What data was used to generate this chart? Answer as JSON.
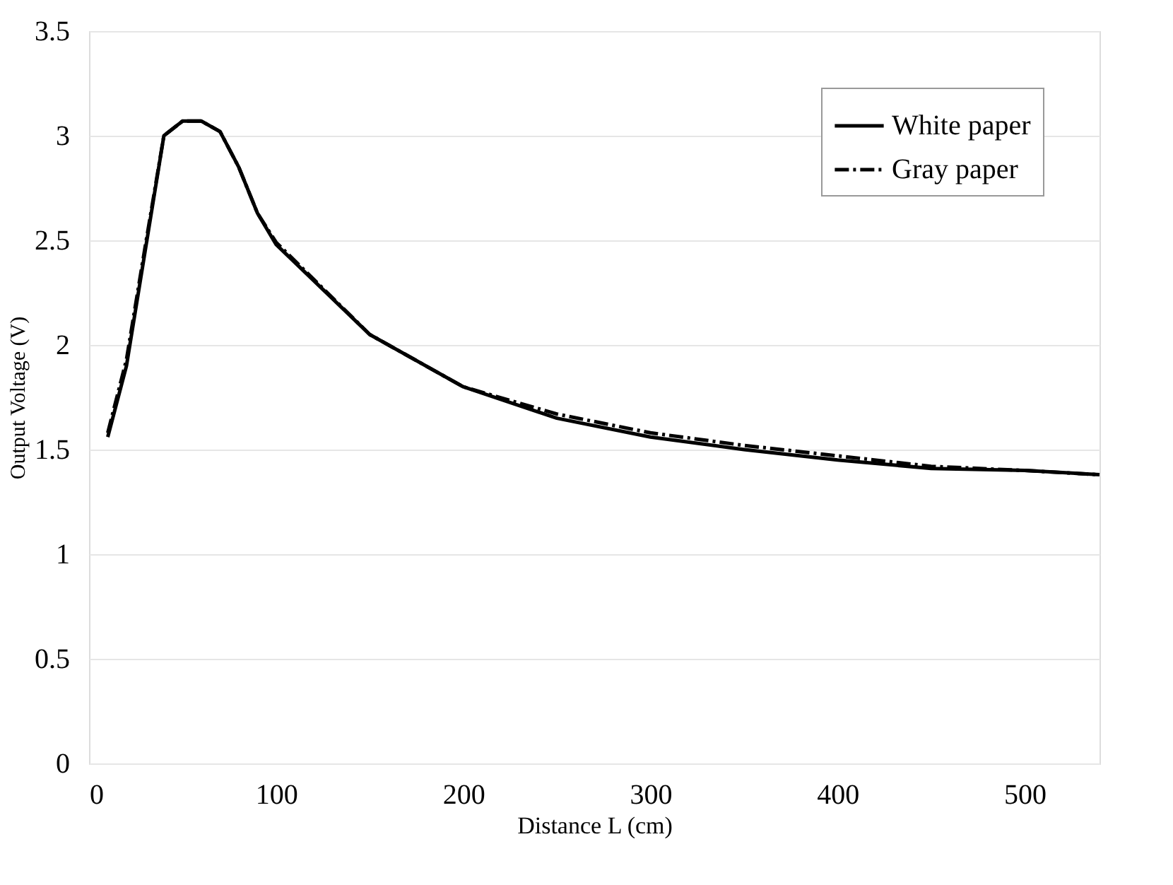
{
  "chart_data": {
    "type": "line",
    "xlabel": "Distance L (cm)",
    "ylabel": "Output Voltage (V)",
    "x": [
      10,
      20,
      30,
      40,
      50,
      60,
      70,
      80,
      90,
      100,
      150,
      200,
      250,
      300,
      350,
      400,
      450,
      500,
      540
    ],
    "series": [
      {
        "name": "White paper",
        "color": "#000000",
        "line_style": "solid",
        "values": [
          1.56,
          1.9,
          2.45,
          3.0,
          3.07,
          3.07,
          3.02,
          2.85,
          2.63,
          2.48,
          2.05,
          1.8,
          1.65,
          1.56,
          1.5,
          1.45,
          1.41,
          1.4,
          1.38
        ]
      },
      {
        "name": "Gray paper",
        "color": "#000000",
        "line_style": "dashed",
        "values": [
          1.58,
          1.93,
          2.47,
          3.0,
          3.07,
          3.07,
          3.02,
          2.85,
          2.63,
          2.49,
          2.05,
          1.8,
          1.67,
          1.58,
          1.52,
          1.47,
          1.42,
          1.4,
          1.38
        ]
      }
    ],
    "xlim": [
      0,
      540
    ],
    "xticks": [
      0,
      100,
      200,
      300,
      400,
      500
    ],
    "ylim": [
      0,
      3.5
    ],
    "yticks": [
      0,
      0.5,
      1,
      1.5,
      2,
      2.5,
      3,
      3.5
    ],
    "grid": "y",
    "legend": "top right",
    "marker": "none"
  }
}
